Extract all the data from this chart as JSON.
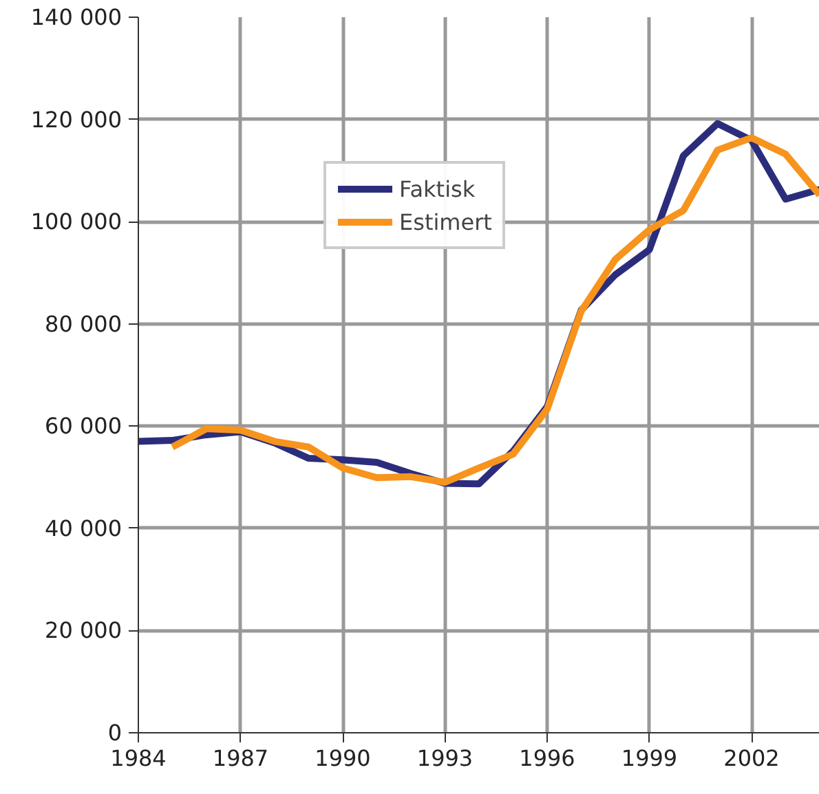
{
  "chart_data": {
    "type": "line",
    "x": [
      1984,
      1985,
      1986,
      1987,
      1988,
      1989,
      1990,
      1991,
      1992,
      1993,
      1994,
      1995,
      1996,
      1997,
      1998,
      1999,
      2000,
      2001,
      2002,
      2003,
      2004
    ],
    "series": [
      {
        "name": "Faktisk",
        "color": "#2b2d7c",
        "values": [
          57000,
          57200,
          58300,
          58900,
          56700,
          53700,
          53400,
          52900,
          50700,
          48800,
          48700,
          55100,
          63800,
          82700,
          89600,
          94500,
          112900,
          119200,
          115900,
          104400,
          106300
        ]
      },
      {
        "name": "Estimert",
        "color": "#f7941d",
        "values": [
          null,
          55900,
          59500,
          59200,
          57000,
          55900,
          51800,
          49900,
          50100,
          49000,
          51800,
          54500,
          63300,
          82500,
          92600,
          98400,
          102200,
          114000,
          116400,
          113200,
          105200
        ]
      }
    ],
    "xlim": [
      1984,
      2004
    ],
    "xticks": [
      1984,
      1987,
      1990,
      1993,
      1996,
      1999,
      2002
    ],
    "ylim": [
      0,
      140000
    ],
    "yticks": [
      {
        "value": 0,
        "label": "0"
      },
      {
        "value": 20000,
        "label": "20 000"
      },
      {
        "value": 40000,
        "label": "40 000"
      },
      {
        "value": 60000,
        "label": "60 000"
      },
      {
        "value": 80000,
        "label": "80 000"
      },
      {
        "value": 100000,
        "label": "100 000"
      },
      {
        "value": 120000,
        "label": "120 000"
      },
      {
        "value": 140000,
        "label": "140 000"
      }
    ],
    "grid": true,
    "legend": "top",
    "line_style": "solid"
  }
}
